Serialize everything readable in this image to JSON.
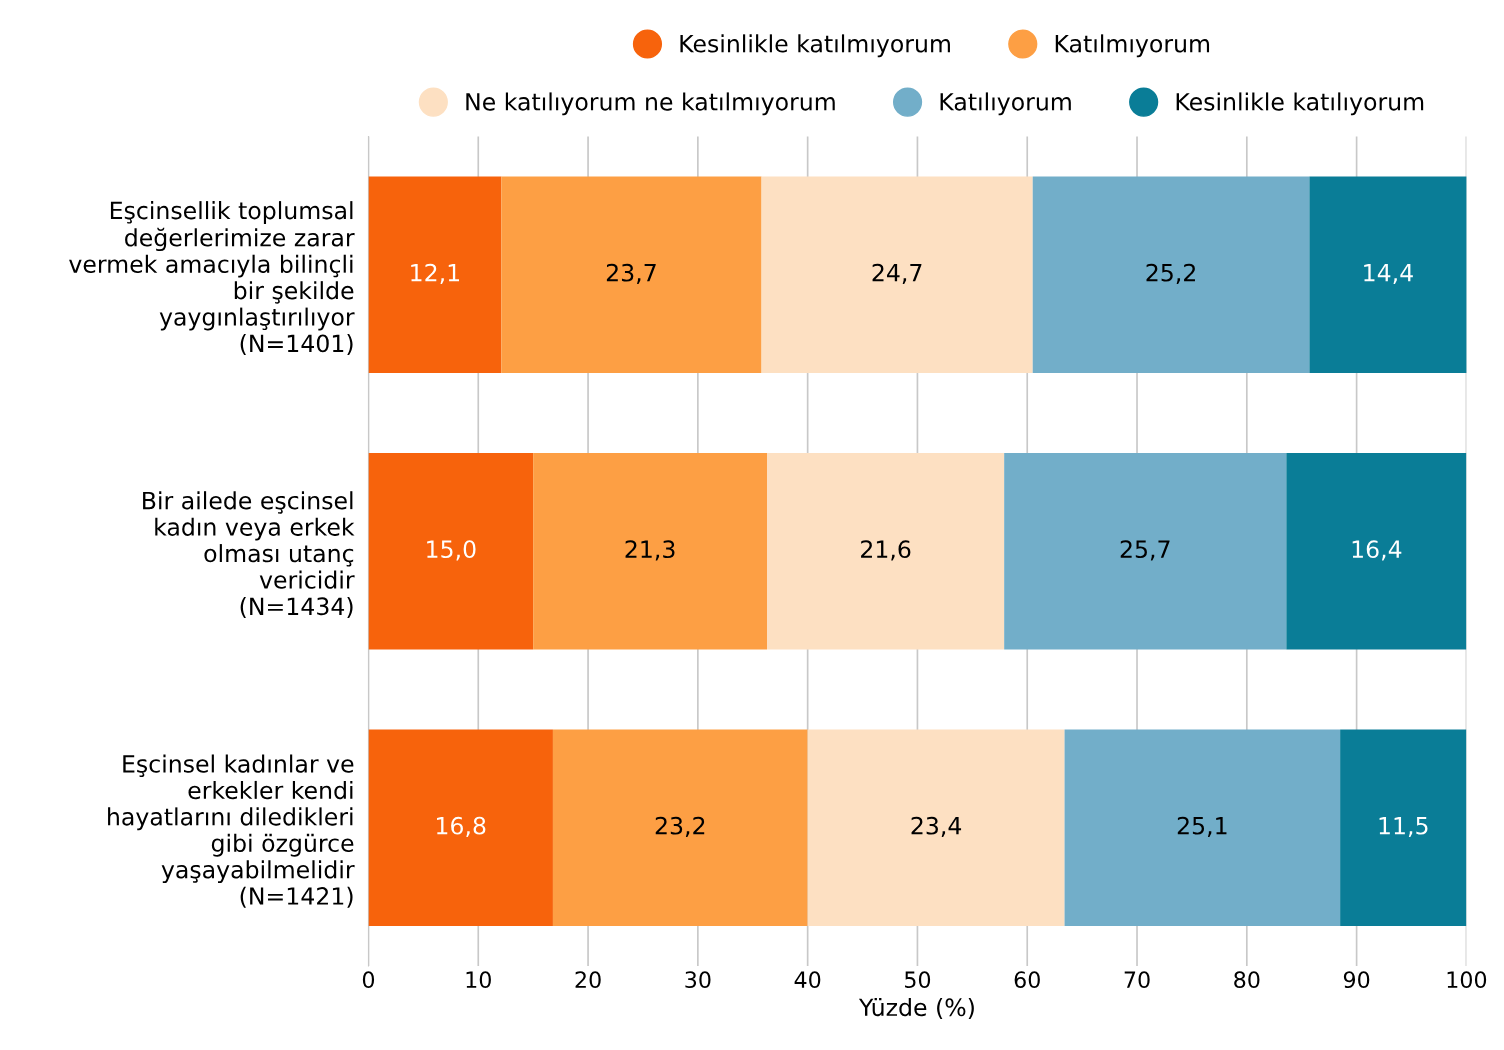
{
  "chart_data": {
    "type": "bar",
    "orientation": "horizontal",
    "stacked": true,
    "xlabel": "Yüzde (%)",
    "categories": [
      "Eşcinsellik toplumsal\ndeğerlerimize zarar\nvermek amacıyla bilinçli\nbir şekilde\nyaygınlaştırılıyor\n(N=1401)",
      "Bir ailede eşcinsel\nkadın veya erkek\nolması utanç\nvericidir\n(N=1434)",
      "Eşcinsel kadınlar ve\nerkekler kendi\nhayatlarını diledikleri\ngibi özgürce\nyaşayabilmelidir\n(N=1421)"
    ],
    "series": [
      {
        "name": "Kesinlikle katılmıyorum",
        "color": "#f7630c",
        "values": [
          12.1,
          15.0,
          16.8
        ],
        "value_labels": [
          "12,1",
          "15,0",
          "16,8"
        ]
      },
      {
        "name": "Katılmıyorum",
        "color": "#fd9f44",
        "values": [
          23.7,
          21.3,
          23.2
        ],
        "value_labels": [
          "23,7",
          "21,3",
          "23,2"
        ]
      },
      {
        "name": "Ne katılıyorum ne katılmıyorum",
        "color": "#fde0c2",
        "values": [
          24.7,
          21.6,
          23.4
        ],
        "value_labels": [
          "24,7",
          "21,6",
          "23,4"
        ]
      },
      {
        "name": "Katılıyorum",
        "color": "#72aec9",
        "values": [
          25.2,
          25.7,
          25.1
        ],
        "value_labels": [
          "25,2",
          "25,7",
          "25,1"
        ]
      },
      {
        "name": "Kesinlikle katılıyorum",
        "color": "#0a7d97",
        "values": [
          14.4,
          16.4,
          11.5
        ],
        "value_labels": [
          "14,4",
          "16,4",
          "11,5"
        ]
      }
    ],
    "xlim": [
      0,
      100
    ],
    "xticks": [
      0,
      10,
      20,
      30,
      40,
      50,
      60,
      70,
      80,
      90,
      100
    ],
    "grid": "x",
    "legend": "top"
  }
}
